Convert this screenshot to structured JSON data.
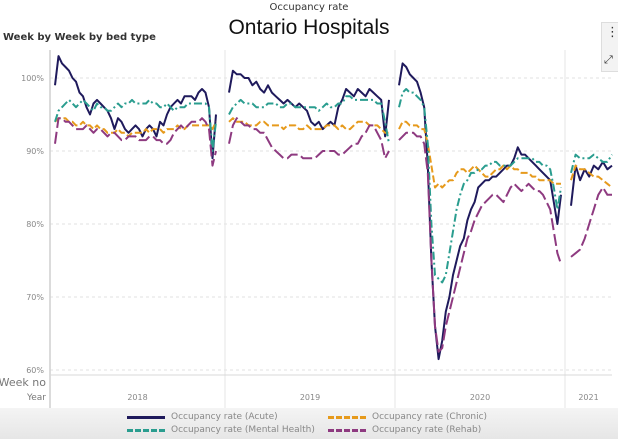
{
  "header": {
    "supertitle": "Occupancy rate",
    "title": "Ontario Hospitals",
    "subtitle": "Week by Week by bed type"
  },
  "toolbar": {
    "more_icon": "more-vertical-icon",
    "expand_icon": "expand-icon"
  },
  "chart_data": {
    "type": "line",
    "title": "Ontario Hospitals",
    "subtitle": "Week by Week by bed type",
    "ylabel": "Occupancy rate",
    "xlabel": "Year",
    "x_row_labels": [
      "Week no",
      "Year"
    ],
    "ylim": [
      60,
      103
    ],
    "yticks": [
      "60%",
      "70%",
      "80%",
      "90%",
      "100%"
    ],
    "ytick_values": [
      60,
      70,
      80,
      90,
      100
    ],
    "grid": true,
    "legend_position": "bottom",
    "panels": [
      "2018",
      "2019",
      "2020",
      "2021"
    ],
    "series": [
      {
        "name": "Occupancy rate (Acute)",
        "color": "#1f1a5c",
        "dash": "solid",
        "values": {
          "2018": [
            99,
            103,
            102,
            101.5,
            101,
            100,
            99.5,
            98,
            97.5,
            96,
            95,
            96.5,
            97,
            96.5,
            96,
            95.5,
            94.5,
            93,
            94.5,
            94,
            93,
            92.5,
            93,
            93.5,
            93,
            92,
            93,
            93.5,
            93,
            92,
            94,
            93.5,
            95,
            96,
            96.5,
            97,
            96.5,
            97.5,
            97.5,
            97.5,
            97,
            98,
            98.5,
            98,
            96,
            89,
            95
          ],
          "2019": [
            98,
            101,
            100.5,
            100.5,
            100,
            100,
            99,
            99.5,
            98.5,
            98,
            99,
            98,
            97.5,
            97,
            96.5,
            97,
            96.5,
            96,
            96.5,
            96,
            95.5,
            94,
            93.5,
            94,
            93,
            93.5,
            94,
            93.5,
            96,
            97,
            98.5,
            98,
            97.5,
            98.5,
            98,
            97.5,
            98.5,
            98,
            97.5,
            97,
            92,
            97
          ],
          "2020": [
            99,
            102,
            101.5,
            100.5,
            100,
            99.5,
            98,
            96,
            88,
            75,
            66,
            61.5,
            64,
            68,
            70,
            73,
            75,
            77,
            78,
            80.5,
            82,
            83,
            85,
            85.5,
            86,
            86,
            86.5,
            86.5,
            87,
            87.5,
            88,
            88,
            89,
            90.5,
            89.5,
            89.5,
            89,
            88.5,
            88,
            87.5,
            87,
            86.5,
            86,
            83,
            80,
            84
          ],
          "2021": [
            82.5,
            88,
            86,
            87.5,
            86.5,
            88,
            87.5,
            88.5,
            87.5,
            88
          ]
        }
      },
      {
        "name": "Occupancy rate (Chronic)",
        "color": "#e69a1c",
        "dash": "dashed",
        "values": {
          "2018": [
            94,
            94.5,
            94.5,
            94.5,
            94,
            94,
            93.5,
            93.5,
            94,
            93.5,
            93.5,
            93,
            93.5,
            93,
            93,
            92.5,
            92.5,
            92.5,
            93,
            92.5,
            92.5,
            92,
            92.5,
            92.5,
            92.5,
            92.5,
            93,
            92.5,
            93,
            93,
            93,
            92.5,
            93,
            93,
            93,
            93.5,
            93,
            93,
            93.5,
            93.5,
            93.5,
            93.5,
            93.5,
            93.5,
            93.5,
            93,
            94
          ],
          "2019": [
            94,
            94.5,
            94,
            94,
            94,
            93.5,
            93.5,
            93.5,
            94,
            94,
            93.5,
            93.5,
            93.5,
            93.5,
            93,
            93.5,
            93.5,
            93.5,
            93,
            93,
            93.5,
            93,
            93,
            93,
            93,
            93.5,
            93.5,
            93.5,
            93,
            93.5,
            93,
            93,
            93.5,
            94,
            94,
            94,
            93.5,
            93.5,
            93.5,
            93,
            92.5,
            92.5
          ],
          "2020": [
            93,
            94,
            94,
            93.5,
            93.5,
            93.5,
            93,
            93,
            91,
            88,
            85,
            85.5,
            85,
            85.5,
            86,
            86,
            87,
            87.5,
            87.5,
            87,
            87.5,
            88,
            87.5,
            87,
            86.5,
            86.5,
            87,
            87.5,
            87.5,
            88,
            87.5,
            88,
            87.5,
            87.5,
            87,
            87,
            87,
            86.5,
            86.5,
            86,
            86,
            86,
            86,
            85.5,
            85.5,
            85.5
          ],
          "2021": [
            86,
            88,
            87.5,
            87.5,
            87,
            86.5,
            86.5,
            86,
            85.5,
            85
          ]
        }
      },
      {
        "name": "Occupancy rate (Mental Health)",
        "color": "#2a9d8f",
        "dash": "dashdot",
        "values": {
          "2018": [
            94,
            95.5,
            96,
            96.5,
            97,
            96.5,
            96,
            96.5,
            97,
            96.5,
            96,
            95.5,
            96.5,
            96,
            96,
            95.5,
            95.5,
            96,
            96.5,
            96,
            96.5,
            96.5,
            97,
            96.5,
            96.5,
            96.5,
            96.5,
            97,
            96.5,
            96.5,
            96,
            96,
            96.5,
            96,
            95.5,
            96,
            96,
            96,
            96.5,
            96.5,
            96.5,
            96.5,
            96.5,
            96.5,
            96,
            90,
            94
          ],
          "2019": [
            95,
            96,
            96.5,
            97,
            96.5,
            96.5,
            96.5,
            96,
            96,
            96,
            96.5,
            96.5,
            96.5,
            96,
            96,
            96.5,
            96.5,
            96,
            96,
            96,
            96,
            96,
            96,
            95.5,
            96,
            96.5,
            96,
            96,
            96.5,
            96.5,
            97.5,
            97.5,
            97,
            97,
            97,
            97,
            97,
            97,
            96.5,
            96.5,
            94,
            91
          ],
          "2020": [
            96,
            98,
            98.5,
            98,
            98,
            97.5,
            97,
            96,
            91,
            80,
            73,
            72.5,
            72,
            73,
            76,
            79,
            82,
            84,
            85.5,
            86,
            87,
            87,
            87.5,
            87.5,
            88,
            88,
            88.5,
            88.5,
            88,
            88,
            88,
            88,
            88.5,
            89,
            89,
            89,
            89,
            89,
            88.5,
            88.5,
            88,
            88,
            87.5,
            85,
            82,
            85
          ],
          "2021": [
            87,
            89.5,
            89,
            89,
            89,
            89.5,
            89,
            88.5,
            88.5,
            89.5
          ]
        }
      },
      {
        "name": "Occupancy rate (Rehab)",
        "color": "#8e3a80",
        "dash": "longdash",
        "values": {
          "2018": [
            91,
            94.5,
            94.5,
            94,
            94,
            93.5,
            93,
            93,
            93,
            93.5,
            93,
            92.5,
            93,
            93,
            92.5,
            92,
            92.5,
            92.5,
            92,
            91.5,
            91.5,
            92,
            92,
            92,
            91.5,
            91.5,
            91.5,
            92,
            92,
            91.5,
            91.5,
            91,
            91,
            91.5,
            92.5,
            93,
            93.5,
            93,
            93.5,
            94,
            94,
            94,
            94.5,
            94,
            93,
            88,
            90
          ],
          "2019": [
            91,
            93.5,
            94.5,
            94,
            93.5,
            93.5,
            93,
            93,
            92.5,
            92.5,
            91.5,
            90.5,
            90,
            89.5,
            89,
            89,
            89.5,
            89.5,
            89.5,
            89,
            89,
            89,
            89,
            89.5,
            90,
            90,
            90,
            90,
            89.5,
            89.5,
            90,
            90.5,
            91,
            91,
            92,
            92.5,
            93.5,
            93.5,
            92.5,
            91.5,
            89,
            90
          ],
          "2020": [
            91.5,
            92,
            92.5,
            92.5,
            92.5,
            92,
            92,
            91,
            87,
            75,
            66,
            62.5,
            63,
            66,
            68,
            70,
            72,
            74,
            76,
            78,
            79,
            80.5,
            81.5,
            82.5,
            83,
            83.5,
            84,
            84,
            83.5,
            83,
            84,
            85,
            85.5,
            85,
            84.5,
            85,
            85.5,
            85,
            84.5,
            84.5,
            84,
            83,
            82,
            79,
            76,
            74.5
          ],
          "2021": [
            75.5,
            76,
            76.5,
            78,
            80,
            82,
            84,
            85,
            84,
            84
          ]
        }
      }
    ]
  }
}
